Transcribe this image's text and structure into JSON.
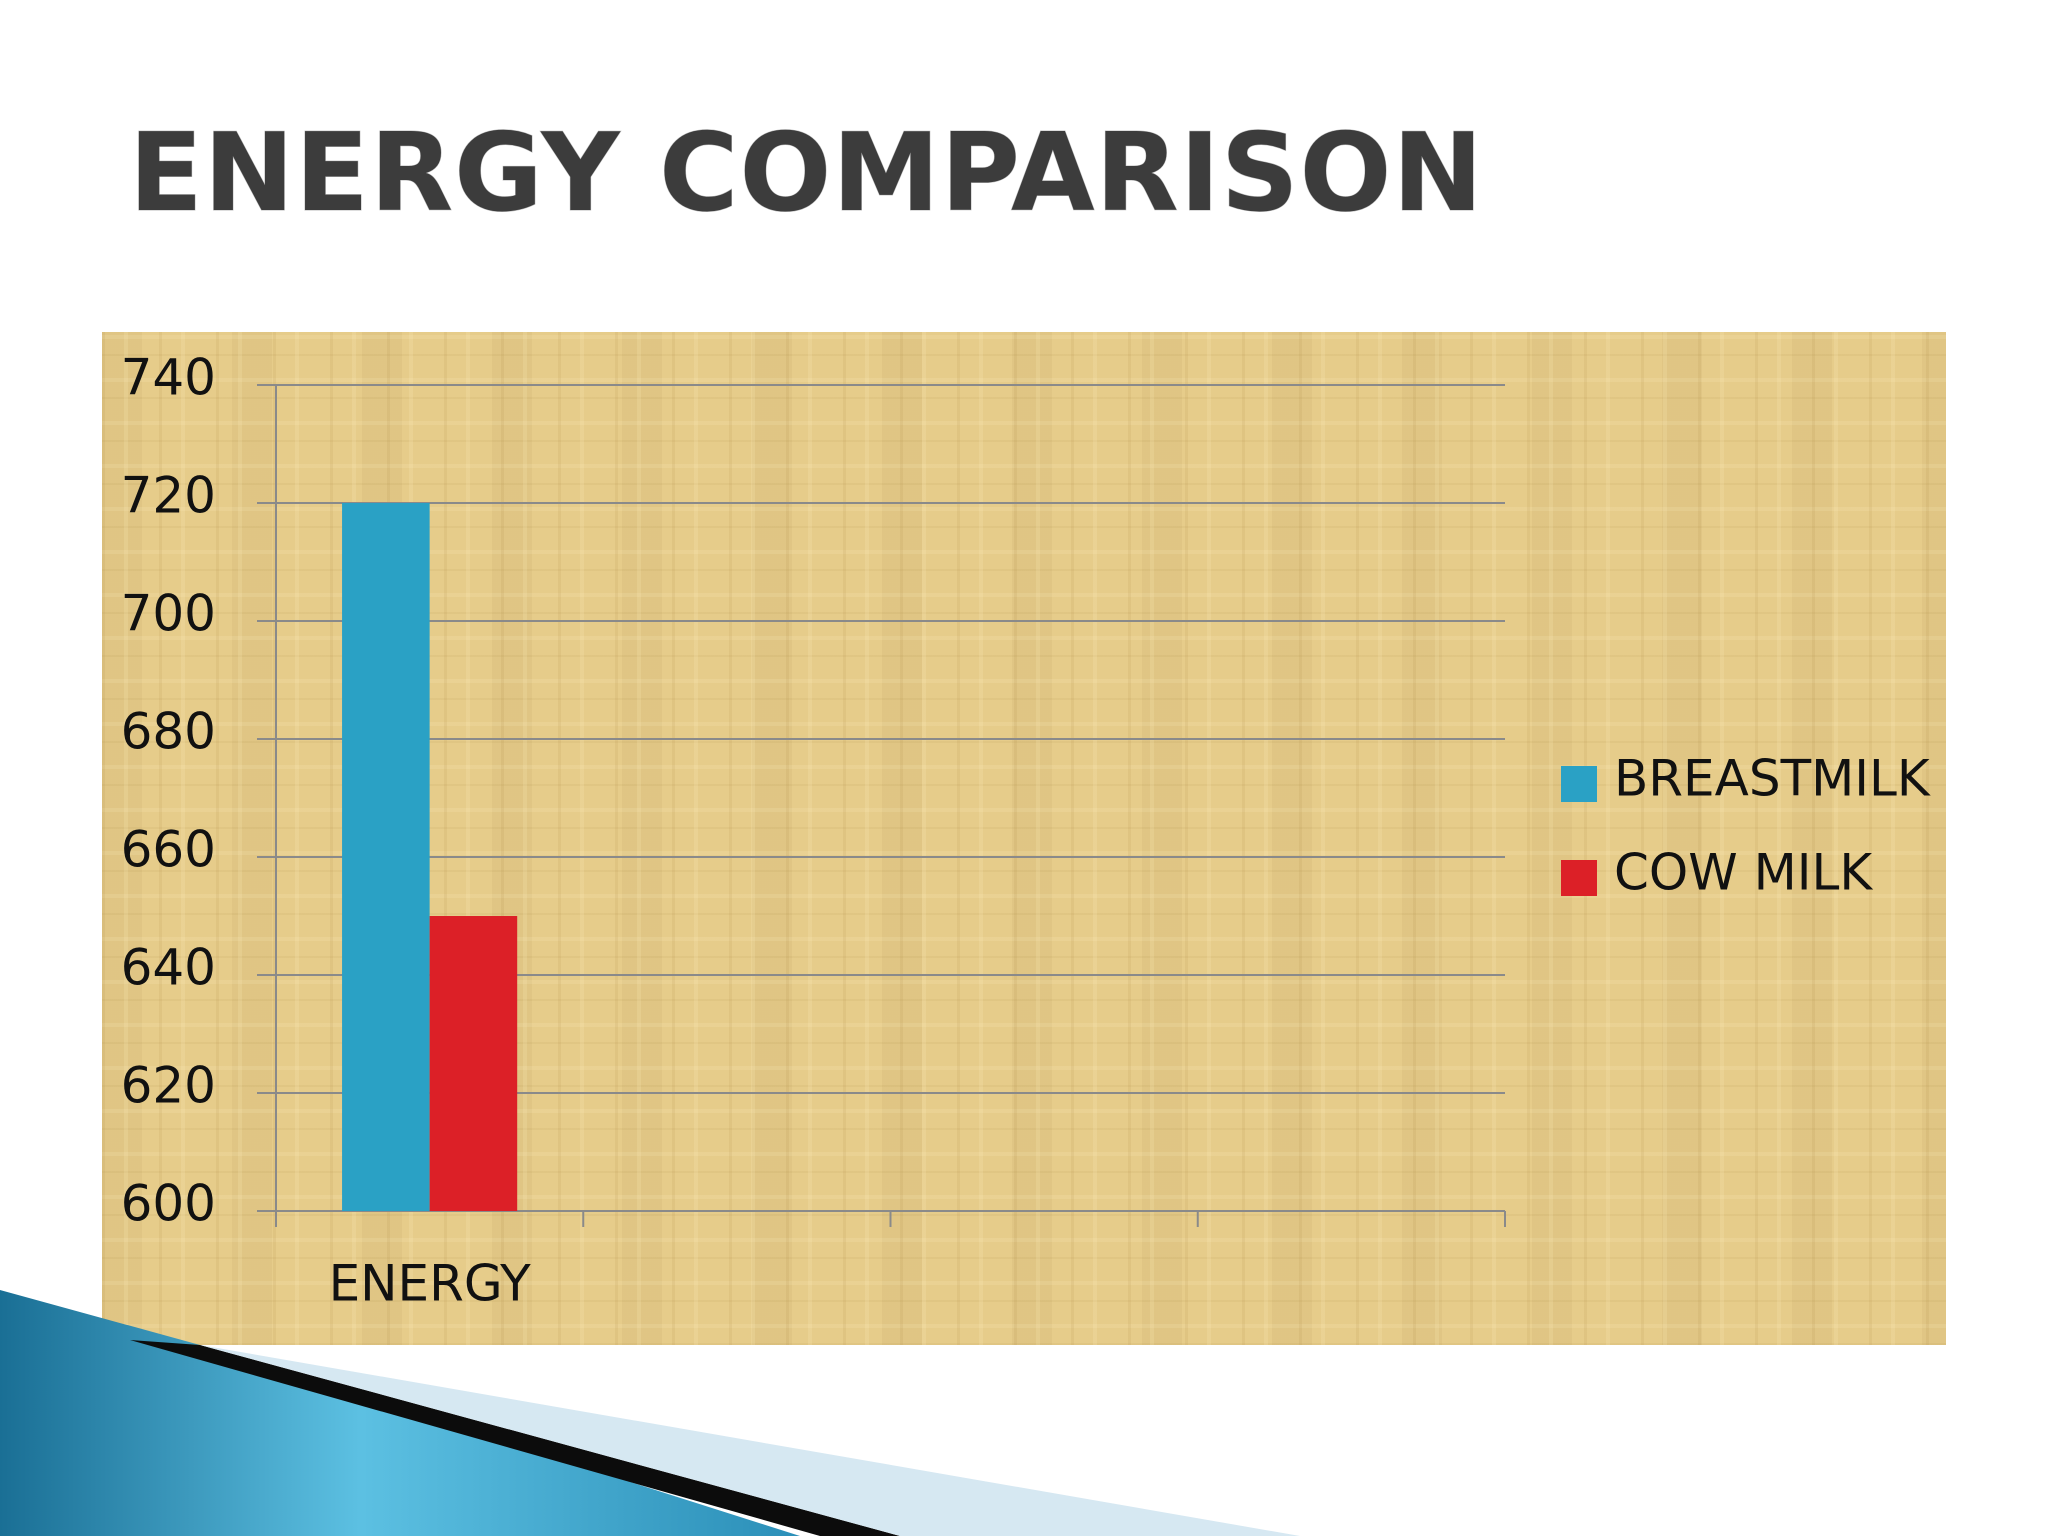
{
  "chart_data": {
    "type": "bar",
    "title": "ENERGY COMPARISON",
    "categories": [
      "ENERGY",
      null,
      null,
      null
    ],
    "series": [
      {
        "name": "BREASTMILK",
        "color": "#2aa1c5",
        "values": [
          720,
          null,
          null,
          null
        ]
      },
      {
        "name": "COW MILK",
        "color": "#dc2027",
        "values": [
          650,
          null,
          null,
          null
        ]
      }
    ],
    "ylim": [
      600,
      740
    ],
    "yticks": [
      600,
      620,
      640,
      660,
      680,
      700,
      720,
      740
    ],
    "grid": true,
    "legend": "right"
  }
}
